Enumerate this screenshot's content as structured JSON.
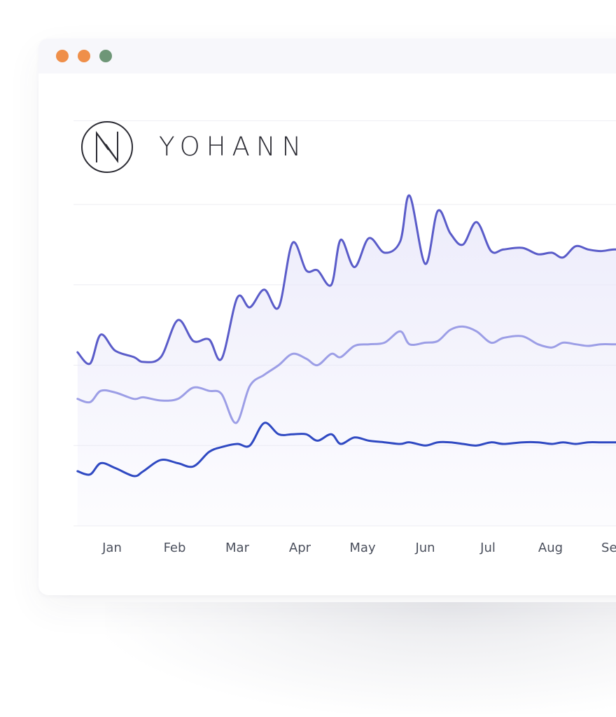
{
  "window": {
    "controls": [
      {
        "name": "close",
        "color": "#ef8f4a"
      },
      {
        "name": "minimize",
        "color": "#ef8f4a"
      },
      {
        "name": "zoom",
        "color": "#6e9677"
      }
    ]
  },
  "brand": {
    "name": "YOHANN",
    "logo_icon": "monogram-circle-icon"
  },
  "colors": {
    "series_top": "#5a5cc9",
    "series_middle": "#9c9ee6",
    "series_bottom": "#2f49c2",
    "area_fill": "#e9e8fa",
    "grid": "#ececf2"
  },
  "chart_data": {
    "type": "line",
    "title": "",
    "xlabel": "",
    "ylabel": "",
    "categories": [
      "Jan",
      "Feb",
      "Mar",
      "Apr",
      "May",
      "Jun",
      "Jul",
      "Aug",
      "Sep"
    ],
    "ylim": [
      0,
      4
    ],
    "grid": true,
    "x_range": [
      0.45,
      9.35
    ],
    "series": [
      {
        "x": [
          0.45,
          0.65,
          0.82,
          1.05,
          1.35,
          1.5,
          1.78,
          2.05,
          2.3,
          2.55,
          2.75,
          3.0,
          3.2,
          3.43,
          3.66,
          3.88,
          4.1,
          4.28,
          4.5,
          4.65,
          4.87,
          5.1,
          5.35,
          5.6,
          5.75,
          6.0,
          6.2,
          6.4,
          6.6,
          6.82,
          7.05,
          7.25,
          7.55,
          7.8,
          8.02,
          8.2,
          8.4,
          8.6,
          8.8,
          9.02,
          9.35
        ],
        "y": [
          2.16,
          2.02,
          2.38,
          2.18,
          2.1,
          2.04,
          2.1,
          2.56,
          2.3,
          2.32,
          2.08,
          2.84,
          2.72,
          2.94,
          2.72,
          3.52,
          3.18,
          3.18,
          3.0,
          3.56,
          3.22,
          3.58,
          3.4,
          3.54,
          4.11,
          3.26,
          3.92,
          3.64,
          3.5,
          3.78,
          3.42,
          3.44,
          3.46,
          3.38,
          3.4,
          3.34,
          3.48,
          3.44,
          3.42,
          3.44,
          3.44
        ]
      },
      {
        "x": [
          0.45,
          0.65,
          0.82,
          1.05,
          1.35,
          1.5,
          1.78,
          2.05,
          2.3,
          2.55,
          2.75,
          2.98,
          3.2,
          3.43,
          3.66,
          3.88,
          4.1,
          4.28,
          4.5,
          4.65,
          4.87,
          5.1,
          5.35,
          5.6,
          5.75,
          6.0,
          6.2,
          6.4,
          6.6,
          6.82,
          7.05,
          7.25,
          7.55,
          7.8,
          8.02,
          8.2,
          8.4,
          8.6,
          8.8,
          9.02,
          9.35
        ],
        "y": [
          1.58,
          1.54,
          1.68,
          1.66,
          1.58,
          1.6,
          1.56,
          1.58,
          1.72,
          1.68,
          1.64,
          1.28,
          1.74,
          1.88,
          2.0,
          2.14,
          2.08,
          2.0,
          2.14,
          2.1,
          2.24,
          2.26,
          2.28,
          2.42,
          2.26,
          2.28,
          2.3,
          2.44,
          2.48,
          2.42,
          2.28,
          2.34,
          2.36,
          2.26,
          2.22,
          2.28,
          2.26,
          2.24,
          2.26,
          2.26,
          2.26
        ]
      },
      {
        "x": [
          0.45,
          0.65,
          0.82,
          1.05,
          1.35,
          1.5,
          1.78,
          2.05,
          2.3,
          2.55,
          2.75,
          3.0,
          3.2,
          3.43,
          3.66,
          3.88,
          4.1,
          4.28,
          4.5,
          4.65,
          4.87,
          5.1,
          5.35,
          5.6,
          5.75,
          6.0,
          6.2,
          6.4,
          6.6,
          6.82,
          7.05,
          7.25,
          7.55,
          7.8,
          8.02,
          8.2,
          8.4,
          8.6,
          8.8,
          9.02,
          9.35
        ],
        "y": [
          0.68,
          0.64,
          0.78,
          0.72,
          0.62,
          0.68,
          0.82,
          0.78,
          0.74,
          0.92,
          0.98,
          1.02,
          1.0,
          1.28,
          1.14,
          1.14,
          1.14,
          1.06,
          1.14,
          1.02,
          1.1,
          1.06,
          1.04,
          1.02,
          1.04,
          1.0,
          1.04,
          1.04,
          1.02,
          1.0,
          1.04,
          1.02,
          1.04,
          1.04,
          1.02,
          1.04,
          1.02,
          1.04,
          1.04,
          1.04,
          1.04
        ]
      }
    ]
  }
}
